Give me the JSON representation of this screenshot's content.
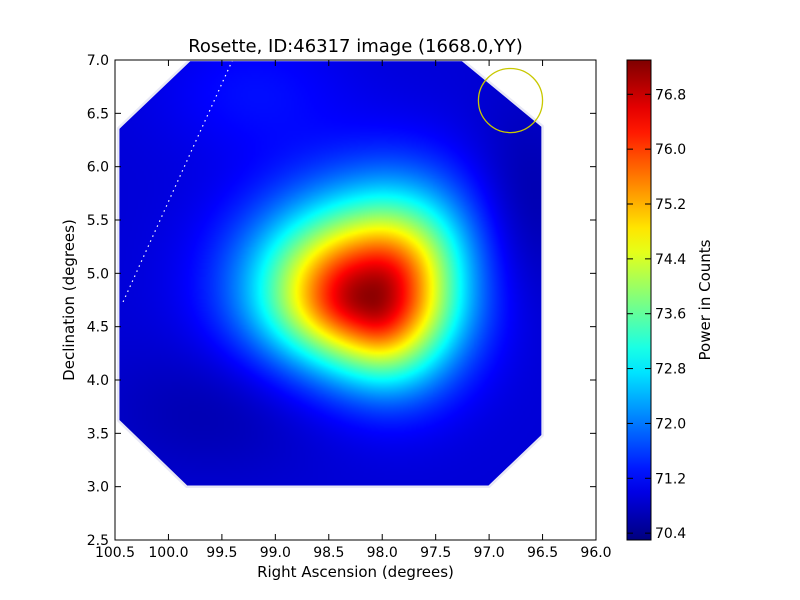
{
  "chart_data": {
    "type": "heatmap",
    "title": "Rosette, ID:46317 image (1668.0,YY)",
    "xlabel": "Right Ascension (degrees)",
    "ylabel": "Declination (degrees)",
    "colorbar_label": "Power in Counts",
    "xlim": [
      100.5,
      96.0
    ],
    "ylim": [
      2.5,
      7.0
    ],
    "x_ticks": [
      100.5,
      100.0,
      99.5,
      99.0,
      98.5,
      98.0,
      97.5,
      97.0,
      96.5,
      96.0
    ],
    "x_tick_labels": [
      "100.5",
      "100.0",
      "99.5",
      "99.0",
      "98.5",
      "98.0",
      "97.5",
      "97.0",
      "96.5",
      "96.0"
    ],
    "y_ticks": [
      2.5,
      3.0,
      3.5,
      4.0,
      4.5,
      5.0,
      5.5,
      6.0,
      6.5,
      7.0
    ],
    "y_tick_labels": [
      "2.5",
      "3.0",
      "3.5",
      "4.0",
      "4.5",
      "5.0",
      "5.5",
      "6.0",
      "6.5",
      "7.0"
    ],
    "colorbar_range": [
      70.3,
      77.3
    ],
    "colorbar_ticks": [
      70.4,
      71.2,
      72.0,
      72.8,
      73.6,
      74.4,
      75.2,
      76.0,
      76.8
    ],
    "colorbar_tick_labels": [
      "70.4",
      "71.2",
      "72.0",
      "72.8",
      "73.6",
      "74.4",
      "75.2",
      "76.0",
      "76.8"
    ],
    "colormap": "jet",
    "peak": {
      "ra": 98.1,
      "dec": 4.78,
      "value": 77.2
    },
    "background_level": 70.9,
    "coverage_polygon": [
      [
        100.47,
        6.36
      ],
      [
        99.8,
        7.0
      ],
      [
        97.25,
        7.0
      ],
      [
        96.5,
        6.38
      ],
      [
        96.5,
        3.48
      ],
      [
        97.0,
        3.0
      ],
      [
        99.83,
        3.0
      ],
      [
        100.47,
        3.62
      ]
    ],
    "circle": {
      "ra": 96.8,
      "dec": 6.62,
      "radius_deg": 0.3,
      "color": "#c8c800"
    },
    "dotted_line": {
      "start": [
        99.4,
        7.0
      ],
      "end": [
        100.43,
        4.72
      ],
      "color": "#ffffff"
    }
  }
}
